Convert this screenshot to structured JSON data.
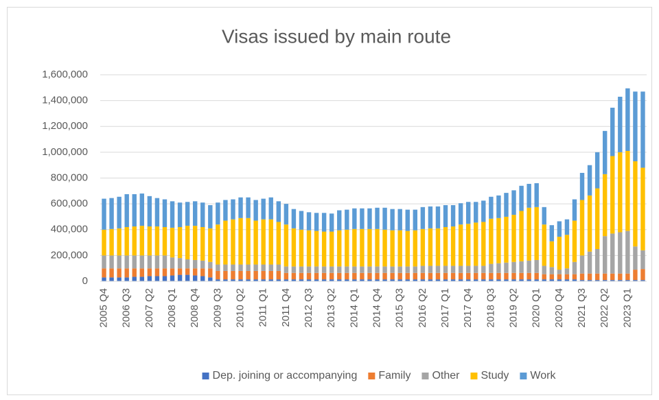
{
  "chart_data": {
    "type": "stacked-bar",
    "title": "Visas issued by main route",
    "categories": [
      "2005 Q4",
      null,
      null,
      "2006 Q3",
      null,
      null,
      "2007 Q2",
      null,
      null,
      "2008 Q1",
      null,
      null,
      "2008 Q4",
      null,
      null,
      "2009 Q3",
      null,
      null,
      "2010 Q2",
      null,
      null,
      "2011 Q1",
      null,
      null,
      "2011 Q4",
      null,
      null,
      "2012 Q3",
      null,
      null,
      "2013 Q2",
      null,
      null,
      "2014 Q1",
      null,
      null,
      "2014 Q4",
      null,
      null,
      "2015 Q3",
      null,
      null,
      "2016 Q2",
      null,
      null,
      "2017 Q1",
      null,
      null,
      "2017 Q4",
      null,
      null,
      "2018 Q3",
      null,
      null,
      "2019 Q2",
      null,
      null,
      "2020 Q1",
      null,
      null,
      "2020 Q4",
      null,
      null,
      "2021 Q3",
      null,
      null,
      "2022 Q2",
      null,
      null,
      "2023 Q1",
      null,
      null
    ],
    "series": [
      {
        "name": "Dep. joining or accompanying",
        "color": "#4472c4",
        "values": [
          30000,
          30000,
          30000,
          30000,
          35000,
          35000,
          40000,
          40000,
          40000,
          45000,
          50000,
          50000,
          45000,
          40000,
          30000,
          15000,
          15000,
          15000,
          15000,
          15000,
          15000,
          15000,
          15000,
          15000,
          15000,
          15000,
          15000,
          15000,
          15000,
          15000,
          15000,
          15000,
          15000,
          15000,
          15000,
          15000,
          15000,
          15000,
          15000,
          15000,
          15000,
          15000,
          15000,
          15000,
          15000,
          15000,
          15000,
          15000,
          15000,
          15000,
          15000,
          15000,
          15000,
          15000,
          15000,
          15000,
          15000,
          15000,
          15000,
          15000,
          15000,
          15000,
          15000,
          10000,
          10000,
          10000,
          10000,
          10000,
          10000,
          10000,
          10000,
          10000
        ]
      },
      {
        "name": "Family",
        "color": "#ed7d31",
        "values": [
          70000,
          70000,
          70000,
          70000,
          65000,
          65000,
          60000,
          60000,
          60000,
          55000,
          50000,
          50000,
          55000,
          60000,
          70000,
          65000,
          65000,
          65000,
          65000,
          65000,
          65000,
          65000,
          65000,
          65000,
          50000,
          50000,
          50000,
          50000,
          50000,
          50000,
          50000,
          50000,
          50000,
          50000,
          50000,
          50000,
          50000,
          50000,
          50000,
          50000,
          50000,
          50000,
          50000,
          50000,
          50000,
          50000,
          50000,
          50000,
          50000,
          50000,
          50000,
          50000,
          50000,
          50000,
          50000,
          50000,
          50000,
          50000,
          40000,
          40000,
          40000,
          40000,
          40000,
          50000,
          50000,
          50000,
          50000,
          50000,
          50000,
          50000,
          80000,
          85000
        ]
      },
      {
        "name": "Other",
        "color": "#a5a5a5",
        "values": [
          100000,
          100000,
          100000,
          100000,
          100000,
          100000,
          100000,
          100000,
          100000,
          85000,
          80000,
          70000,
          65000,
          60000,
          50000,
          50000,
          50000,
          50000,
          50000,
          50000,
          50000,
          50000,
          50000,
          50000,
          50000,
          50000,
          50000,
          50000,
          50000,
          50000,
          50000,
          50000,
          50000,
          50000,
          50000,
          50000,
          50000,
          50000,
          50000,
          50000,
          50000,
          50000,
          55000,
          55000,
          55000,
          55000,
          55000,
          55000,
          55000,
          55000,
          55000,
          70000,
          75000,
          80000,
          85000,
          90000,
          95000,
          100000,
          65000,
          55000,
          35000,
          45000,
          95000,
          140000,
          170000,
          190000,
          290000,
          310000,
          320000,
          330000,
          180000,
          145000
        ]
      },
      {
        "name": "Study",
        "color": "#ffc000",
        "values": [
          200000,
          205000,
          210000,
          220000,
          225000,
          230000,
          225000,
          225000,
          220000,
          230000,
          240000,
          260000,
          265000,
          260000,
          260000,
          310000,
          340000,
          350000,
          360000,
          360000,
          340000,
          350000,
          350000,
          330000,
          325000,
          295000,
          285000,
          280000,
          275000,
          270000,
          270000,
          280000,
          285000,
          290000,
          290000,
          290000,
          290000,
          285000,
          280000,
          280000,
          275000,
          280000,
          285000,
          290000,
          290000,
          300000,
          305000,
          320000,
          325000,
          335000,
          340000,
          350000,
          350000,
          355000,
          365000,
          390000,
          410000,
          410000,
          320000,
          200000,
          255000,
          260000,
          320000,
          430000,
          435000,
          470000,
          480000,
          600000,
          620000,
          620000,
          660000,
          640000
        ]
      },
      {
        "name": "Work",
        "color": "#5b9bd5",
        "values": [
          240000,
          240000,
          245000,
          255000,
          250000,
          250000,
          235000,
          220000,
          215000,
          205000,
          190000,
          185000,
          190000,
          190000,
          180000,
          170000,
          160000,
          155000,
          160000,
          160000,
          160000,
          160000,
          170000,
          160000,
          160000,
          150000,
          145000,
          140000,
          140000,
          145000,
          140000,
          155000,
          155000,
          160000,
          160000,
          160000,
          165000,
          170000,
          165000,
          165000,
          165000,
          160000,
          170000,
          170000,
          170000,
          170000,
          165000,
          165000,
          170000,
          160000,
          165000,
          170000,
          175000,
          185000,
          190000,
          195000,
          185000,
          185000,
          135000,
          125000,
          120000,
          120000,
          165000,
          210000,
          235000,
          280000,
          335000,
          375000,
          430000,
          485000,
          540000,
          590000
        ]
      }
    ],
    "ylim": [
      0,
      1600000
    ],
    "yticks": [
      0,
      {
        "value": 200000,
        "label": "200,000"
      },
      {
        "value": 400000,
        "label": "400,000"
      },
      {
        "value": 600000,
        "label": "600,000"
      },
      {
        "value": 800000,
        "label": "800,000"
      },
      {
        "value": 1000000,
        "label": "1,000,000"
      },
      {
        "value": 1200000,
        "label": "1,200,000"
      },
      {
        "value": 1400000,
        "label": "1,400,000"
      },
      {
        "value": 1600000,
        "label": "1,600,000"
      }
    ],
    "grid": true,
    "legend": "bottom"
  }
}
